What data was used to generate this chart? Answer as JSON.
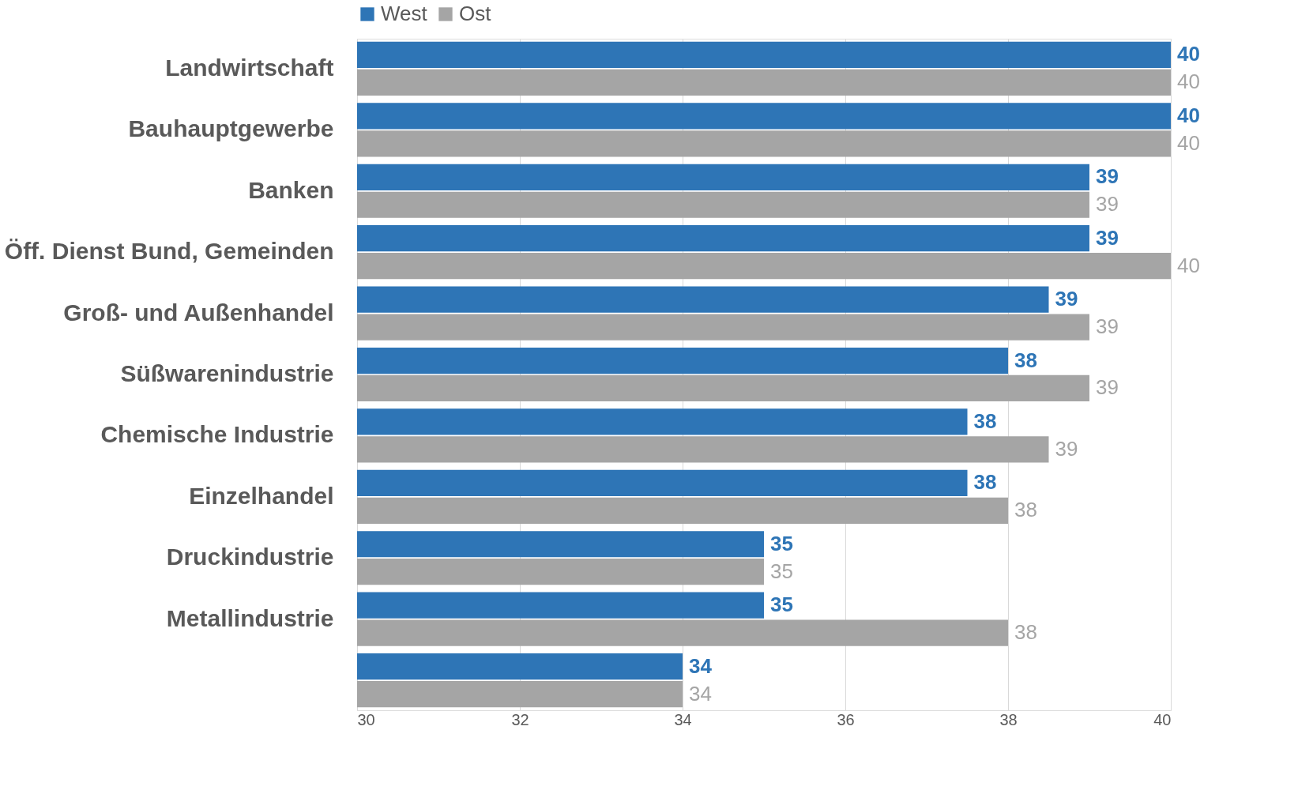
{
  "chart_data": {
    "type": "bar",
    "orientation": "horizontal",
    "categories": [
      "Landwirtschaft",
      "Bauhauptgewerbe",
      "Banken",
      "Öff. Dienst Bund, Gemeinden",
      "Groß- und Außenhandel",
      "Süßwarenindustrie",
      "Chemische Industrie",
      "Einzelhandel",
      "Druckindustrie",
      "Metallindustrie",
      null
    ],
    "series": [
      {
        "name": "West",
        "color": "#2e75b6",
        "values": [
          40,
          40,
          39,
          39,
          38.5,
          38,
          37.5,
          37.5,
          35,
          35,
          34
        ],
        "value_labels": [
          "40",
          "40",
          "39",
          "39",
          "39",
          "38",
          "38",
          "38",
          "35",
          "35",
          "34"
        ]
      },
      {
        "name": "Ost",
        "color": "#a5a5a5",
        "values": [
          40,
          40,
          39,
          40,
          39,
          39,
          38.5,
          38,
          35,
          38,
          34
        ],
        "value_labels": [
          "40",
          "40",
          "39",
          "40",
          "39",
          "39",
          "39",
          "38",
          "35",
          "38",
          "34"
        ]
      }
    ],
    "xlim": [
      30,
      40
    ],
    "xticks": [
      30,
      32,
      34,
      36,
      38,
      40
    ],
    "grid": "x",
    "legend": "top"
  }
}
